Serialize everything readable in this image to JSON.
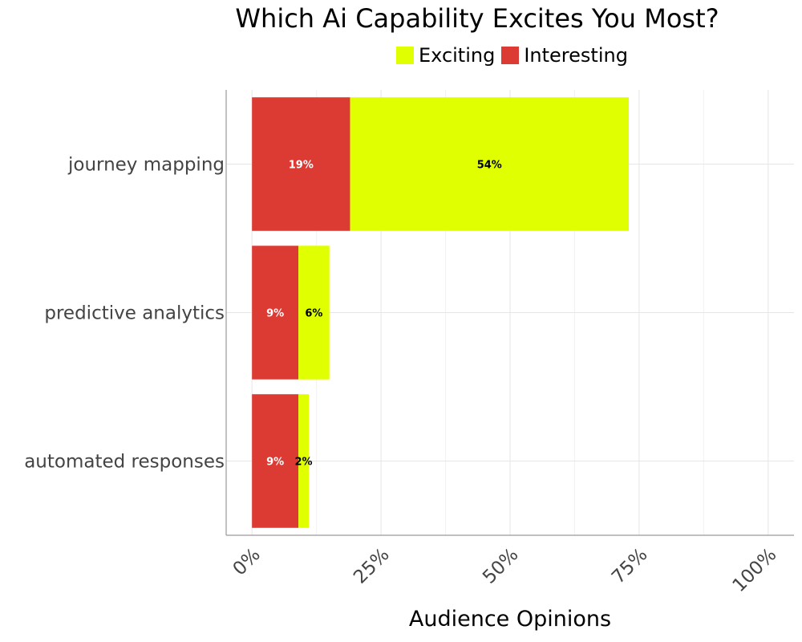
{
  "chart_data": {
    "type": "bar",
    "orientation": "horizontal",
    "stacked": true,
    "title": "Which Ai Capability Excites You Most?",
    "xlabel": "Audience Opinions",
    "ylabel": "",
    "categories": [
      "journey mapping",
      "predictive analytics",
      "automated responses"
    ],
    "series": [
      {
        "name": "Interesting",
        "color": "#dc3b34",
        "label_color": "#ffffff",
        "values": [
          19,
          9,
          9
        ],
        "labels": [
          "19%",
          "9%",
          "9%"
        ]
      },
      {
        "name": "Exciting",
        "color": "#e0ff00",
        "label_color": "#000000",
        "values": [
          54,
          6,
          2
        ],
        "labels": [
          "54%",
          "6%",
          "2%"
        ]
      }
    ],
    "xlim": [
      -5,
      105
    ],
    "x_ticks": [
      0,
      25,
      50,
      75,
      100
    ],
    "x_tick_labels": [
      "0%",
      "25%",
      "50%",
      "75%",
      "100%"
    ],
    "legend_items": [
      {
        "name": "Exciting",
        "color": "#e0ff00"
      },
      {
        "name": "Interesting",
        "color": "#dc3b34"
      }
    ],
    "legend_position": "top",
    "grid": true
  }
}
